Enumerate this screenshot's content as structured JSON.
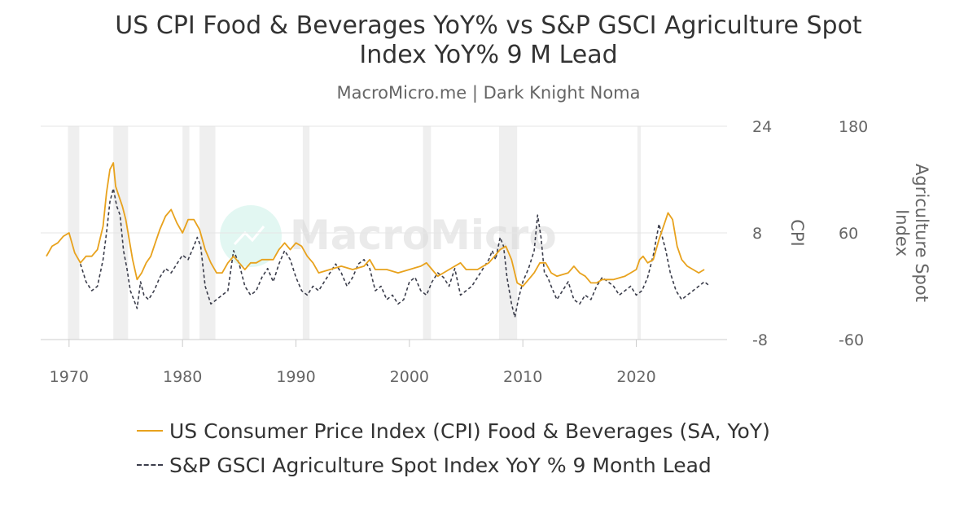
{
  "chart_data": {
    "type": "line",
    "title_line1": "US CPI Food & Beverages YoY% vs S&P GSCI Agriculture Spot",
    "title_line2": "Index YoY% 9 M Lead",
    "subtitle": "MacroMicro.me | Dark Knight Noma",
    "watermark": "MacroMicro",
    "xlim": [
      1967.5,
      2028
    ],
    "x_ticks": [
      "1970",
      "1980",
      "1990",
      "2000",
      "2010",
      "2020"
    ],
    "y_left": {
      "label": "CPI",
      "min": -8,
      "max": 24,
      "ticks": [
        "24",
        "8",
        "-8"
      ]
    },
    "y_right": {
      "label": "Agriculture Spot Index",
      "min": -60,
      "max": 180,
      "ticks": [
        "180",
        "60",
        "-60"
      ]
    },
    "recessions": [
      [
        1969.9,
        1970.9
      ],
      [
        1973.9,
        1975.2
      ],
      [
        1980.0,
        1980.6
      ],
      [
        1981.5,
        1982.9
      ],
      [
        1990.6,
        1991.2
      ],
      [
        2001.2,
        2001.9
      ],
      [
        2007.9,
        2009.5
      ],
      [
        2020.1,
        2020.4
      ]
    ],
    "series": [
      {
        "name": "US Consumer Price Index (CPI) Food & Beverages (SA, YoY)",
        "axis": "left",
        "color": "#e8a21d",
        "dash": "solid",
        "x": [
          1968.0,
          1968.5,
          1969.0,
          1969.5,
          1970.0,
          1970.5,
          1971.0,
          1971.5,
          1972.0,
          1972.5,
          1973.0,
          1973.3,
          1973.6,
          1973.9,
          1974.1,
          1974.4,
          1974.7,
          1975.0,
          1975.3,
          1975.6,
          1976.0,
          1976.4,
          1976.8,
          1977.2,
          1977.6,
          1978.0,
          1978.5,
          1979.0,
          1979.5,
          1980.0,
          1980.5,
          1981.0,
          1981.5,
          1982.0,
          1982.5,
          1983.0,
          1983.5,
          1984.0,
          1984.5,
          1985.0,
          1985.5,
          1986.0,
          1986.5,
          1987.0,
          1987.5,
          1988.0,
          1988.5,
          1989.0,
          1989.5,
          1990.0,
          1990.5,
          1991.0,
          1991.5,
          1992.0,
          1993.0,
          1994.0,
          1995.0,
          1996.0,
          1996.5,
          1997.0,
          1998.0,
          1999.0,
          2000.0,
          2001.0,
          2001.5,
          2002.0,
          2002.5,
          2003.0,
          2004.0,
          2004.5,
          2005.0,
          2006.0,
          2007.0,
          2007.5,
          2008.0,
          2008.5,
          2009.0,
          2009.5,
          2010.0,
          2010.5,
          2011.0,
          2011.5,
          2012.0,
          2012.5,
          2013.0,
          2014.0,
          2014.5,
          2015.0,
          2015.5,
          2016.0,
          2016.5,
          2017.0,
          2018.0,
          2019.0,
          2019.5,
          2020.0,
          2020.3,
          2020.6,
          2021.0,
          2021.5,
          2022.0,
          2022.5,
          2022.8,
          2023.2,
          2023.6,
          2024.0,
          2024.5,
          2025.0,
          2025.5,
          2026.0
        ],
        "y": [
          4.5,
          6.0,
          6.5,
          7.5,
          8.0,
          5.0,
          3.5,
          4.5,
          4.5,
          5.5,
          9.0,
          14.0,
          17.5,
          18.5,
          15.0,
          13.5,
          12.0,
          10.0,
          7.0,
          4.0,
          1.0,
          2.0,
          3.5,
          4.5,
          6.5,
          8.5,
          10.5,
          11.5,
          9.5,
          8.0,
          10.0,
          10.0,
          8.5,
          5.5,
          3.5,
          2.0,
          2.0,
          3.5,
          4.5,
          3.5,
          2.5,
          3.5,
          3.5,
          4.0,
          4.0,
          4.0,
          5.5,
          6.5,
          5.5,
          6.5,
          6.0,
          4.5,
          3.5,
          2.0,
          2.5,
          3.0,
          2.5,
          3.0,
          4.0,
          2.5,
          2.5,
          2.0,
          2.5,
          3.0,
          3.5,
          2.5,
          1.5,
          2.0,
          3.0,
          3.5,
          2.5,
          2.5,
          3.5,
          4.5,
          5.5,
          6.0,
          4.0,
          0.5,
          0.0,
          1.0,
          2.0,
          3.5,
          3.5,
          2.0,
          1.5,
          2.0,
          3.0,
          2.0,
          1.5,
          0.5,
          0.5,
          1.0,
          1.0,
          1.5,
          2.0,
          2.5,
          4.0,
          4.5,
          3.5,
          4.0,
          7.0,
          9.5,
          11.0,
          10.0,
          6.0,
          4.0,
          3.0,
          2.5,
          2.0,
          2.5
        ]
      },
      {
        "name": "S&P GSCI Agriculture Spot Index YoY % 9 Month Lead",
        "axis": "right",
        "color": "#3b3d4b",
        "dash": "dashed",
        "x": [
          1971.0,
          1971.5,
          1972.0,
          1972.5,
          1973.0,
          1973.3,
          1973.6,
          1973.9,
          1974.2,
          1974.5,
          1974.8,
          1975.1,
          1975.4,
          1975.7,
          1976.0,
          1976.3,
          1976.6,
          1977.0,
          1977.5,
          1978.0,
          1978.5,
          1979.0,
          1979.5,
          1980.0,
          1980.5,
          1981.0,
          1981.3,
          1981.6,
          1982.0,
          1982.5,
          1983.0,
          1983.5,
          1984.0,
          1984.5,
          1985.0,
          1985.5,
          1986.0,
          1986.5,
          1987.0,
          1987.5,
          1988.0,
          1988.5,
          1989.0,
          1989.5,
          1990.0,
          1990.5,
          1991.0,
          1991.5,
          1992.0,
          1992.5,
          1993.0,
          1993.5,
          1994.0,
          1994.5,
          1995.0,
          1995.5,
          1996.0,
          1996.5,
          1997.0,
          1997.5,
          1998.0,
          1998.5,
          1999.0,
          1999.5,
          2000.0,
          2000.5,
          2001.0,
          2001.5,
          2002.0,
          2002.5,
          2003.0,
          2003.5,
          2004.0,
          2004.5,
          2005.0,
          2005.5,
          2006.0,
          2006.5,
          2007.0,
          2007.3,
          2007.6,
          2008.0,
          2008.3,
          2008.6,
          2009.0,
          2009.3,
          2009.6,
          2010.0,
          2010.5,
          2011.0,
          2011.3,
          2011.6,
          2011.9,
          2012.2,
          2012.5,
          2013.0,
          2013.5,
          2014.0,
          2014.5,
          2015.0,
          2015.5,
          2016.0,
          2016.5,
          2017.0,
          2017.5,
          2018.0,
          2018.5,
          2019.0,
          2019.5,
          2020.0,
          2020.5,
          2021.0,
          2021.5,
          2022.0,
          2022.3,
          2022.6,
          2023.0,
          2023.5,
          2024.0,
          2024.5,
          2025.0,
          2025.5,
          2026.0,
          2026.5
        ],
        "y": [
          25,
          5,
          -5,
          0,
          30,
          60,
          95,
          110,
          90,
          80,
          40,
          20,
          -5,
          -15,
          -25,
          5,
          -10,
          -15,
          -5,
          10,
          20,
          15,
          25,
          35,
          30,
          45,
          55,
          45,
          0,
          -20,
          -15,
          -10,
          -5,
          40,
          25,
          0,
          -10,
          -5,
          10,
          20,
          5,
          25,
          40,
          30,
          10,
          -5,
          -10,
          0,
          -5,
          5,
          15,
          25,
          15,
          0,
          10,
          25,
          30,
          20,
          -5,
          0,
          -15,
          -10,
          -20,
          -15,
          5,
          10,
          -5,
          -10,
          5,
          15,
          10,
          0,
          20,
          -10,
          -5,
          0,
          10,
          20,
          30,
          40,
          30,
          55,
          45,
          10,
          -20,
          -35,
          -15,
          5,
          20,
          40,
          80,
          55,
          15,
          10,
          0,
          -15,
          -5,
          5,
          -15,
          -20,
          -10,
          -15,
          0,
          10,
          5,
          0,
          -10,
          -5,
          0,
          -10,
          -5,
          10,
          35,
          70,
          55,
          40,
          15,
          -5,
          -15,
          -10,
          -5,
          0,
          5,
          0
        ]
      }
    ]
  }
}
